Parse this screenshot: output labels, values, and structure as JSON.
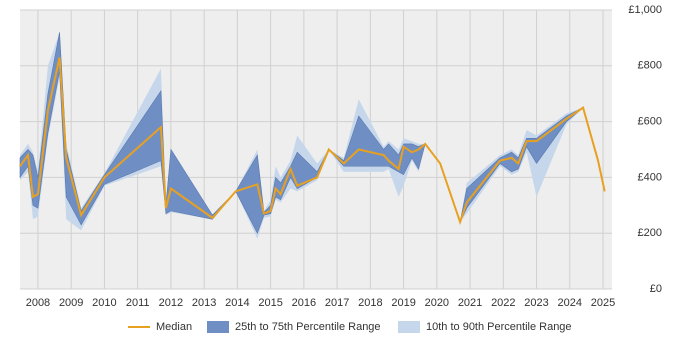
{
  "chart_data": {
    "type": "line",
    "x": [
      2007.46,
      2007.7,
      2007.85,
      2008.0,
      2008.3,
      2008.65,
      2008.85,
      2009.3,
      2010.0,
      2011.7,
      2011.85,
      2012.0,
      2013.25,
      2013.95,
      2014.6,
      2014.8,
      2015.0,
      2015.15,
      2015.3,
      2015.6,
      2015.8,
      2016.4,
      2016.75,
      2017.2,
      2017.65,
      2018.4,
      2018.55,
      2018.85,
      2019.0,
      2019.25,
      2019.45,
      2019.65,
      2020.1,
      2020.7,
      2020.9,
      2021.9,
      2022.25,
      2022.45,
      2022.7,
      2023.0,
      2023.9,
      2024.4,
      2024.85,
      2025.05
    ],
    "series": [
      {
        "name": "Median",
        "color": "#e8a020",
        "values": [
          440,
          480,
          330,
          340,
          640,
          830,
          470,
          265,
          400,
          580,
          290,
          360,
          255,
          350,
          375,
          270,
          280,
          360,
          340,
          430,
          370,
          400,
          500,
          450,
          500,
          480,
          460,
          430,
          510,
          490,
          500,
          520,
          450,
          240,
          310,
          460,
          470,
          450,
          530,
          530,
          610,
          650,
          460,
          350
        ]
      },
      {
        "name": "25th to 75th Percentile Range",
        "color": "#6f8fc4",
        "lower": [
          400,
          440,
          300,
          290,
          560,
          780,
          330,
          230,
          375,
          460,
          270,
          280,
          250,
          350,
          200,
          265,
          270,
          330,
          320,
          400,
          360,
          400,
          500,
          440,
          440,
          440,
          440,
          420,
          410,
          470,
          430,
          520,
          450,
          240,
          290,
          450,
          420,
          430,
          510,
          450,
          600,
          650,
          460,
          350
        ],
        "upper": [
          470,
          500,
          480,
          400,
          700,
          920,
          500,
          280,
          410,
          710,
          300,
          500,
          265,
          350,
          480,
          275,
          300,
          400,
          380,
          440,
          490,
          420,
          500,
          460,
          620,
          500,
          520,
          480,
          520,
          520,
          510,
          520,
          450,
          240,
          360,
          470,
          490,
          470,
          540,
          540,
          620,
          650,
          460,
          350
        ]
      },
      {
        "name": "10th to 90th Percentile Range",
        "color": "#c6d7ec",
        "lower": [
          390,
          420,
          250,
          260,
          540,
          760,
          250,
          210,
          370,
          440,
          265,
          275,
          250,
          350,
          180,
          255,
          260,
          320,
          310,
          360,
          350,
          390,
          500,
          420,
          420,
          420,
          430,
          330,
          370,
          460,
          420,
          520,
          450,
          240,
          270,
          440,
          410,
          420,
          490,
          330,
          590,
          650,
          460,
          350
        ],
        "upper": [
          480,
          520,
          490,
          420,
          800,
          920,
          520,
          290,
          415,
          790,
          310,
          505,
          265,
          350,
          500,
          280,
          320,
          440,
          400,
          460,
          550,
          450,
          500,
          470,
          680,
          510,
          530,
          500,
          540,
          530,
          520,
          520,
          450,
          240,
          380,
          480,
          500,
          480,
          570,
          550,
          630,
          650,
          460,
          350
        ]
      }
    ],
    "xlim": [
      2007.46,
      2025.27
    ],
    "xticks": [
      2008,
      2009,
      2010,
      2011,
      2012,
      2013,
      2014,
      2015,
      2016,
      2017,
      2018,
      2019,
      2020,
      2021,
      2022,
      2023,
      2024,
      2025
    ],
    "ylim": [
      0,
      1000
    ],
    "yticks": [
      {
        "value": 0,
        "label": "£0"
      },
      {
        "value": 200,
        "label": "£200"
      },
      {
        "value": 400,
        "label": "£400"
      },
      {
        "value": 600,
        "label": "£600"
      },
      {
        "value": 800,
        "label": "£800"
      },
      {
        "value": 1000,
        "label": "£1,000"
      }
    ],
    "grid": true
  }
}
